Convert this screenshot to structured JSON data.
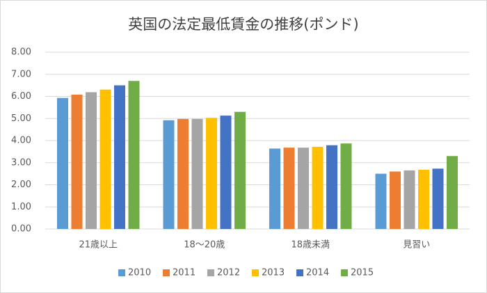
{
  "chart_data": {
    "type": "bar",
    "title": "英国の法定最低賃金の推移(ポンド)",
    "categories": [
      "21歳以上",
      "18〜20歳",
      "18歳未満",
      "見習い"
    ],
    "series": [
      {
        "name": "2010",
        "color": "#5b9bd5",
        "values": [
          5.93,
          4.92,
          3.64,
          2.5
        ]
      },
      {
        "name": "2011",
        "color": "#ed7d31",
        "values": [
          6.08,
          4.98,
          3.68,
          2.6
        ]
      },
      {
        "name": "2012",
        "color": "#a5a5a5",
        "values": [
          6.19,
          4.98,
          3.68,
          2.65
        ]
      },
      {
        "name": "2013",
        "color": "#ffc000",
        "values": [
          6.31,
          5.03,
          3.72,
          2.68
        ]
      },
      {
        "name": "2014",
        "color": "#4472c4",
        "values": [
          6.5,
          5.13,
          3.79,
          2.73
        ]
      },
      {
        "name": "2015",
        "color": "#70ad47",
        "values": [
          6.7,
          5.3,
          3.87,
          3.3
        ]
      }
    ],
    "ylim": [
      0,
      8
    ],
    "yticks": [
      {
        "value": 0,
        "label": "0.00"
      },
      {
        "value": 1,
        "label": "1.00"
      },
      {
        "value": 2,
        "label": "2.00"
      },
      {
        "value": 3,
        "label": "3.00"
      },
      {
        "value": 4,
        "label": "4.00"
      },
      {
        "value": 5,
        "label": "5.00"
      },
      {
        "value": 6,
        "label": "6.00"
      },
      {
        "value": 7,
        "label": "7.00"
      },
      {
        "value": 8,
        "label": "8.00"
      }
    ],
    "grid": true,
    "legend": "bottom"
  }
}
